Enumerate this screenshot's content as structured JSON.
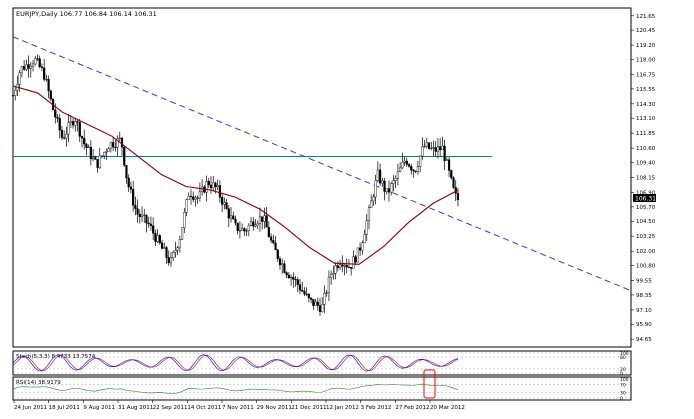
{
  "header": {
    "title": "EURJPY,Daily  106.77 106.84 106.14 106.31"
  },
  "price_tag": "106.31",
  "stochastic": {
    "label": "Stoch(5,3,3) 8.4733 13.7574",
    "levels": [
      "100",
      "80",
      "20",
      "0"
    ]
  },
  "rsi": {
    "label": "RSI(14) 38.9179",
    "levels": [
      "100",
      "70",
      "30",
      "0"
    ]
  },
  "colors": {
    "background": "#ffffff",
    "candles": "#000000",
    "moving_average": "#8b0000",
    "trendline": "#3a3acc",
    "horizontal_level": "#008b8b",
    "stoch_main": "#0000ff",
    "stoch_signal": "#cc0000",
    "rsi_line": "#228b22",
    "highlight": "#ff0000"
  },
  "chart_data": {
    "type": "candlestick",
    "instrument": "EURJPY",
    "timeframe": "Daily",
    "last": {
      "open": 106.77,
      "high": 106.84,
      "low": 106.14,
      "close": 106.31
    },
    "ylim": [
      94.0,
      122.3
    ],
    "y_ticks": [
      "121.65",
      "120.45",
      "119.20",
      "118.00",
      "116.75",
      "115.55",
      "114.30",
      "113.10",
      "111.85",
      "110.60",
      "109.40",
      "108.15",
      "106.90",
      "105.70",
      "104.50",
      "103.25",
      "102.00",
      "100.80",
      "99.55",
      "98.35",
      "97.10",
      "95.90",
      "94.65"
    ],
    "x_ticks": [
      "24 Jun 2011",
      "18 Jul 2011",
      "9 Aug 2011",
      "31 Aug 2011",
      "22 Sep 2011",
      "14 Oct 2011",
      "7 Nov 2011",
      "29 Nov 2011",
      "21 Dec 2011",
      "12 Jan 2012",
      "3 Feb 2012",
      "27 Feb 2012",
      "20 Mar 2012"
    ],
    "price_path": [
      [
        0,
        115.0
      ],
      [
        0.012,
        117.2
      ],
      [
        0.035,
        118.0
      ],
      [
        0.05,
        116.8
      ],
      [
        0.065,
        113.8
      ],
      [
        0.08,
        111.4
      ],
      [
        0.1,
        113.2
      ],
      [
        0.115,
        111.0
      ],
      [
        0.135,
        109.2
      ],
      [
        0.155,
        110.9
      ],
      [
        0.175,
        111.3
      ],
      [
        0.185,
        107.8
      ],
      [
        0.2,
        105.2
      ],
      [
        0.22,
        104.2
      ],
      [
        0.24,
        102.3
      ],
      [
        0.255,
        101.0
      ],
      [
        0.27,
        103.2
      ],
      [
        0.285,
        107.0
      ],
      [
        0.3,
        106.4
      ],
      [
        0.315,
        107.8
      ],
      [
        0.33,
        107.2
      ],
      [
        0.345,
        105.5
      ],
      [
        0.36,
        104.0
      ],
      [
        0.375,
        103.7
      ],
      [
        0.39,
        104.6
      ],
      [
        0.405,
        104.8
      ],
      [
        0.42,
        102.4
      ],
      [
        0.44,
        100.5
      ],
      [
        0.46,
        99.3
      ],
      [
        0.48,
        97.8
      ],
      [
        0.5,
        97.3
      ],
      [
        0.515,
        100.2
      ],
      [
        0.53,
        101.3
      ],
      [
        0.545,
        100.7
      ],
      [
        0.56,
        102.0
      ],
      [
        0.575,
        105.0
      ],
      [
        0.59,
        108.4
      ],
      [
        0.605,
        106.8
      ],
      [
        0.62,
        108.1
      ],
      [
        0.635,
        109.7
      ],
      [
        0.65,
        108.7
      ],
      [
        0.665,
        110.8
      ],
      [
        0.68,
        110.4
      ],
      [
        0.695,
        110.6
      ],
      [
        0.71,
        107.6
      ],
      [
        0.715,
        106.6
      ],
      [
        0.72,
        106.31
      ]
    ],
    "moving_average_path": [
      [
        0,
        115.8
      ],
      [
        0.04,
        115.2
      ],
      [
        0.08,
        113.6
      ],
      [
        0.12,
        112.6
      ],
      [
        0.16,
        111.6
      ],
      [
        0.2,
        110.0
      ],
      [
        0.24,
        108.4
      ],
      [
        0.28,
        107.4
      ],
      [
        0.32,
        107.1
      ],
      [
        0.36,
        106.5
      ],
      [
        0.4,
        105.5
      ],
      [
        0.44,
        104.0
      ],
      [
        0.48,
        102.3
      ],
      [
        0.52,
        101.0
      ],
      [
        0.56,
        100.9
      ],
      [
        0.6,
        102.4
      ],
      [
        0.64,
        104.4
      ],
      [
        0.68,
        106.0
      ],
      [
        0.72,
        107.1
      ]
    ],
    "horizontal_level": {
      "price": 109.9,
      "x_start": 0.0,
      "x_end": 0.775
    },
    "trendline": [
      [
        0.0,
        119.9
      ],
      [
        1.0,
        98.7
      ]
    ]
  }
}
